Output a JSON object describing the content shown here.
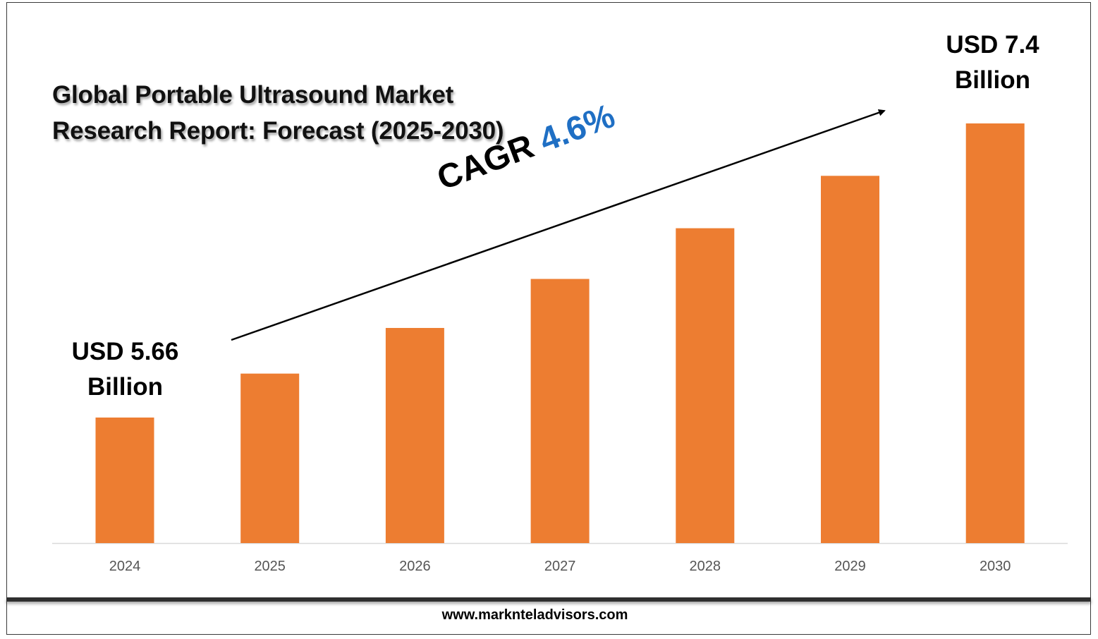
{
  "title": "Global Portable Ultrasound Market Research Report: Forecast (2025-2030)",
  "start_label": "USD 5.66 Billion",
  "start_label_line1": "USD 5.66",
  "start_label_line2": "Billion",
  "end_label_line1": "USD 7.4",
  "end_label_line2": "Billion",
  "cagr_prefix": "CAGR",
  "cagr_value": "4.6%",
  "footer": "www.marknteladvisors.com",
  "colors": {
    "bar": "#ED7D31",
    "cagr": "#1F6FC4",
    "axis": "#D9D9D9"
  },
  "chart_data": {
    "type": "bar",
    "categories": [
      "2024",
      "2025",
      "2026",
      "2027",
      "2028",
      "2029",
      "2030"
    ],
    "values": [
      5.66,
      5.92,
      6.19,
      6.48,
      6.78,
      7.09,
      7.4
    ],
    "title": "Global Portable Ultrasound Market Research Report: Forecast (2025-2030)",
    "xlabel": "",
    "ylabel": "",
    "grid": false,
    "annotations": [
      "USD 5.66 Billion",
      "USD 7.4 Billion",
      "CAGR 4.6%"
    ]
  }
}
